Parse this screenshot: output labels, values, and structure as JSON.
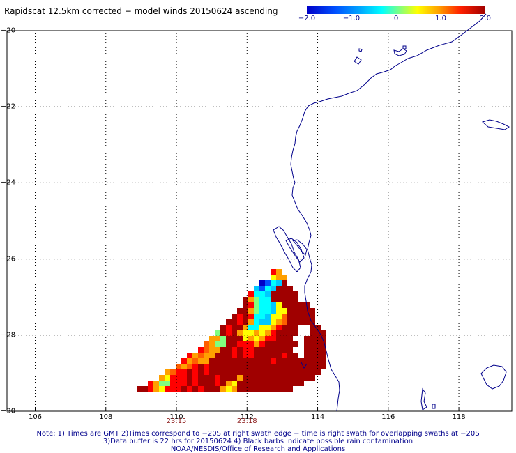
{
  "title": "Rapidscat 12.5km corrected − model winds 20150624 ascending",
  "colorbar": {
    "ticks": [
      "−2.0",
      "−1.0",
      "0",
      "1.0",
      "2.0"
    ],
    "tick_values": [
      -2.0,
      -1.0,
      0,
      1.0,
      2.0
    ],
    "range": [
      -2.0,
      2.0
    ]
  },
  "chart_data": {
    "type": "heatmap",
    "title": "Rapidscat 12.5km corrected − model winds 20150624 ascending",
    "x_ticks": [
      "106",
      "108",
      "110",
      "112",
      "114",
      "116",
      "118"
    ],
    "x_values": [
      106,
      108,
      110,
      112,
      114,
      116,
      118
    ],
    "y_ticks": [
      "−20",
      "−22",
      "−24",
      "−26",
      "−28",
      "−30"
    ],
    "y_values": [
      -20,
      -22,
      -24,
      -26,
      -28,
      -30
    ],
    "xlim": [
      105.2,
      119.5
    ],
    "ylim": [
      -30,
      -20
    ],
    "grid": true,
    "swath_times": [
      {
        "lon": 110,
        "label": "23:15"
      },
      {
        "lon": 112,
        "label": "23:18"
      }
    ]
  },
  "notes": {
    "line1": "Note: 1) Times are GMT 2)Times correspond to −20S at right swath edge − time is right swath for overlapping swaths at −20S",
    "line2": "3)Data buffer is 22 hrs for 20150624 4) Black barbs indicate possible rain contamination",
    "line3": "NOAA/NESDIS/Office of Research and Applications"
  }
}
